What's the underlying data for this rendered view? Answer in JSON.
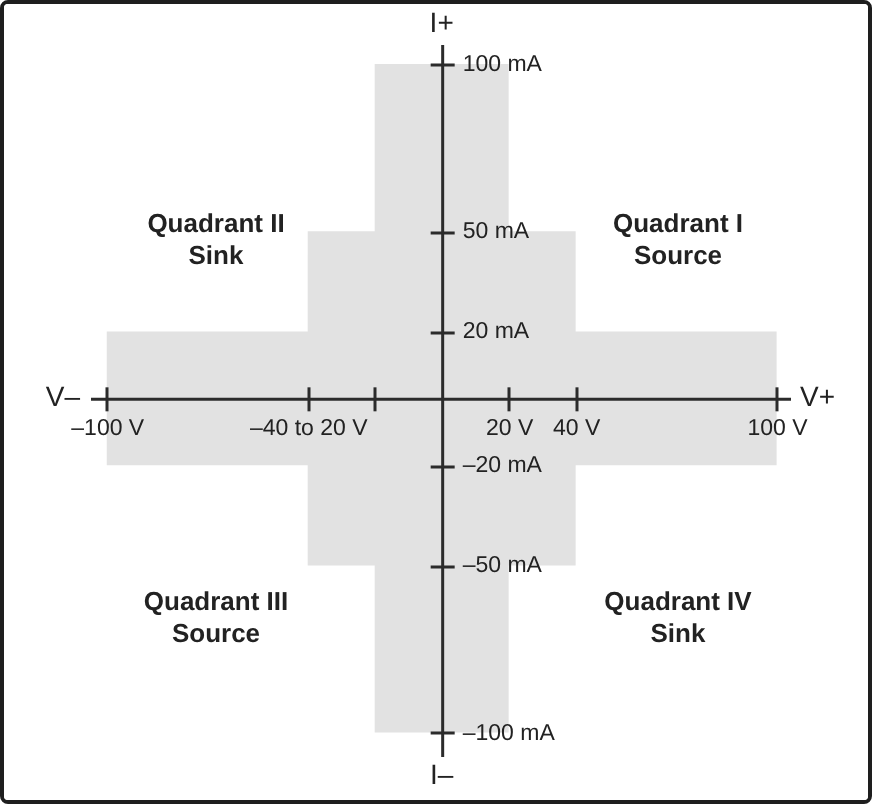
{
  "chart_data": {
    "type": "area",
    "xlim": [
      -105,
      104
    ],
    "xticks": [
      {
        "value": -100,
        "label": "–100 V"
      },
      {
        "value": -40,
        "label": "–40 to 20 V"
      },
      {
        "value": -20,
        "label": null
      },
      {
        "value": 20,
        "label": "20 V"
      },
      {
        "value": 40,
        "label": "40 V"
      },
      {
        "value": 100,
        "label": "100 V"
      }
    ],
    "ylim": [
      -107,
      106
    ],
    "yticks": [
      {
        "value": 100,
        "label": "100 mA"
      },
      {
        "value": 50,
        "label": "50 mA"
      },
      {
        "value": 20,
        "label": "20 mA"
      },
      {
        "value": -20,
        "label": "–20 mA"
      },
      {
        "value": -50,
        "label": "–50 mA"
      },
      {
        "value": -100,
        "label": "–100 mA"
      }
    ],
    "x": [
      -100,
      -40,
      -40,
      -20,
      -20,
      20,
      20,
      40,
      40,
      100
    ],
    "series": [
      {
        "color": "#e2e2e2",
        "values": [
          20,
          20,
          50,
          50,
          100,
          100,
          50,
          50,
          20,
          20
        ]
      },
      {
        "color": "#e2e2e2",
        "values": [
          -20,
          -20,
          -50,
          -50,
          -100,
          -100,
          -50,
          -50,
          -20,
          -20
        ]
      }
    ],
    "annotations": [
      "Quadrant II\nSink",
      "Quadrant I\nSource",
      "Quadrant III\nSource",
      "Quadrant IV\nSink",
      "V–",
      "V+",
      "I+",
      "I–"
    ]
  }
}
